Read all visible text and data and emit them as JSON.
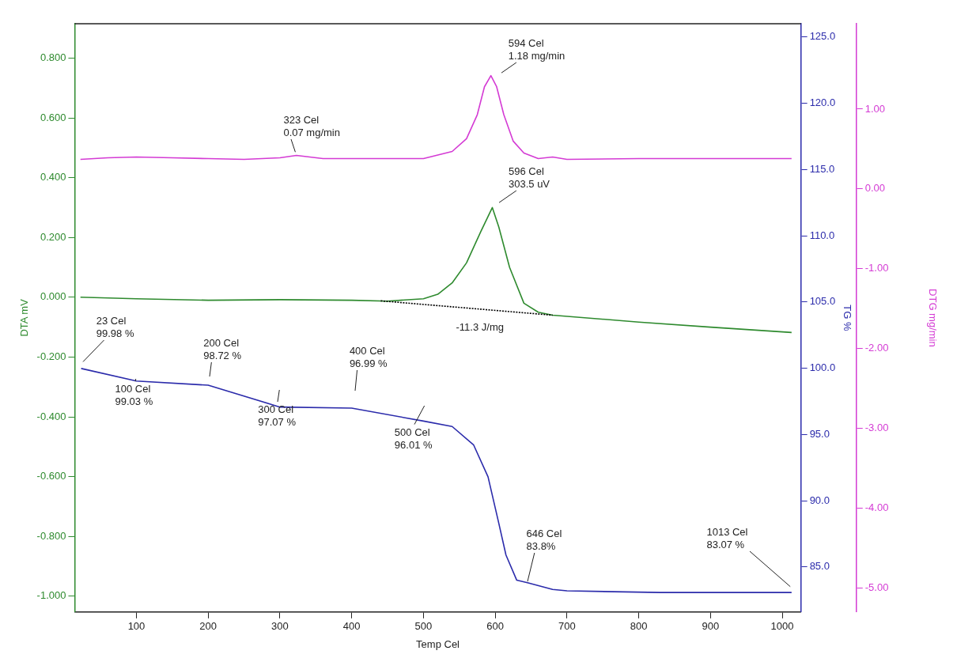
{
  "chart_data": {
    "type": "line",
    "xlabel": "Temp Cel",
    "ylabel": "DTA mV",
    "y2label": "TG %",
    "y3label": "DTG mg/min",
    "xlim": [
      14,
      1026
    ],
    "xticks": [
      100,
      200,
      300,
      400,
      500,
      600,
      700,
      800,
      900,
      1000
    ],
    "ylim": [
      -1.053,
      0.915
    ],
    "yticks": [
      {
        "value": -1,
        "label": "-1.000"
      },
      {
        "value": -0.8,
        "label": "-0.800"
      },
      {
        "value": -0.6,
        "label": "-0.600"
      },
      {
        "value": -0.4,
        "label": "-0.400"
      },
      {
        "value": -0.2,
        "label": "-0.200"
      },
      {
        "value": 0,
        "label": "0.000"
      },
      {
        "value": 0.2,
        "label": "0.200"
      },
      {
        "value": 0.4,
        "label": "0.400"
      },
      {
        "value": 0.6,
        "label": "0.600"
      },
      {
        "value": 0.8,
        "label": "0.800"
      }
    ],
    "y2lim": [
      81.6,
      126
    ],
    "y2ticks": [
      {
        "value": 85,
        "label": "85.0"
      },
      {
        "value": 90,
        "label": "90.0"
      },
      {
        "value": 95,
        "label": "95.0"
      },
      {
        "value": 100,
        "label": "100.0"
      },
      {
        "value": 105,
        "label": "105.0"
      },
      {
        "value": 110,
        "label": "110.0"
      },
      {
        "value": 115,
        "label": "115.0"
      },
      {
        "value": 120,
        "label": "120.0"
      },
      {
        "value": 125,
        "label": "125.0"
      }
    ],
    "y3lim": [
      -5.3,
      2.07
    ],
    "y3ticks": [
      {
        "value": -5,
        "label": "-5.00"
      },
      {
        "value": -4,
        "label": "-4.00"
      },
      {
        "value": -3,
        "label": "-3.00"
      },
      {
        "value": -2,
        "label": "-2.00"
      },
      {
        "value": -1,
        "label": "-1.00"
      },
      {
        "value": 0,
        "label": "0.00"
      },
      {
        "value": 1,
        "label": "1.00"
      }
    ],
    "grid": false,
    "legend": false,
    "marker": "none",
    "series": [
      {
        "color": "#d43bd4",
        "axis": "y3",
        "x": [
          22,
          60,
          100,
          150,
          200,
          250,
          300,
          323,
          360,
          420,
          500,
          540,
          560,
          575,
          585,
          594,
          602,
          612,
          625,
          640,
          660,
          680,
          700,
          800,
          900,
          1013
        ],
        "values": [
          0.37,
          0.39,
          0.4,
          0.39,
          0.38,
          0.37,
          0.39,
          0.42,
          0.38,
          0.38,
          0.38,
          0.47,
          0.63,
          0.93,
          1.28,
          1.42,
          1.28,
          0.93,
          0.6,
          0.45,
          0.38,
          0.4,
          0.37,
          0.38,
          0.38,
          0.38
        ]
      },
      {
        "color": "#2e8a2e",
        "axis": "y",
        "x": [
          22,
          100,
          200,
          300,
          400,
          450,
          500,
          520,
          540,
          560,
          580,
          596,
          605,
          620,
          640,
          660,
          680,
          800,
          900,
          1013
        ],
        "values": [
          0,
          -0.005,
          -0.01,
          -0.008,
          -0.01,
          -0.013,
          -0.005,
          0.01,
          0.048,
          0.115,
          0.22,
          0.3,
          0.235,
          0.1,
          -0.02,
          -0.05,
          -0.06,
          -0.083,
          -0.1,
          -0.118
        ]
      },
      {
        "color": "#000000",
        "axis": "y",
        "line_style": "dotted",
        "x": [
          440,
          680
        ],
        "values": [
          -0.012,
          -0.06
        ]
      },
      {
        "color": "#2b2bab",
        "axis": "y2",
        "x": [
          23,
          100,
          200,
          300,
          400,
          500,
          540,
          570,
          590,
          605,
          615,
          630,
          646,
          680,
          700,
          830,
          1013
        ],
        "values": [
          99.98,
          99.03,
          98.72,
          97.07,
          96.99,
          96.01,
          95.6,
          94.2,
          91.8,
          88.3,
          85.9,
          84.0,
          83.8,
          83.3,
          83.2,
          83.07,
          83.07
        ]
      }
    ],
    "annotations": [
      "594 Cel\n1.18 mg/min",
      "323 Cel\n0.07 mg/min",
      "596 Cel\n303.5 uV",
      "23 Cel\n99.98 %",
      "100 Cel\n99.03 %",
      "200 Cel\n98.72 %",
      "300 Cel\n97.07 %",
      "400 Cel\n96.99 %",
      "500 Cel\n96.01 %",
      "646 Cel\n83.8%",
      "1013 Cel\n83.07 %",
      "-11.3 J/mg"
    ]
  }
}
